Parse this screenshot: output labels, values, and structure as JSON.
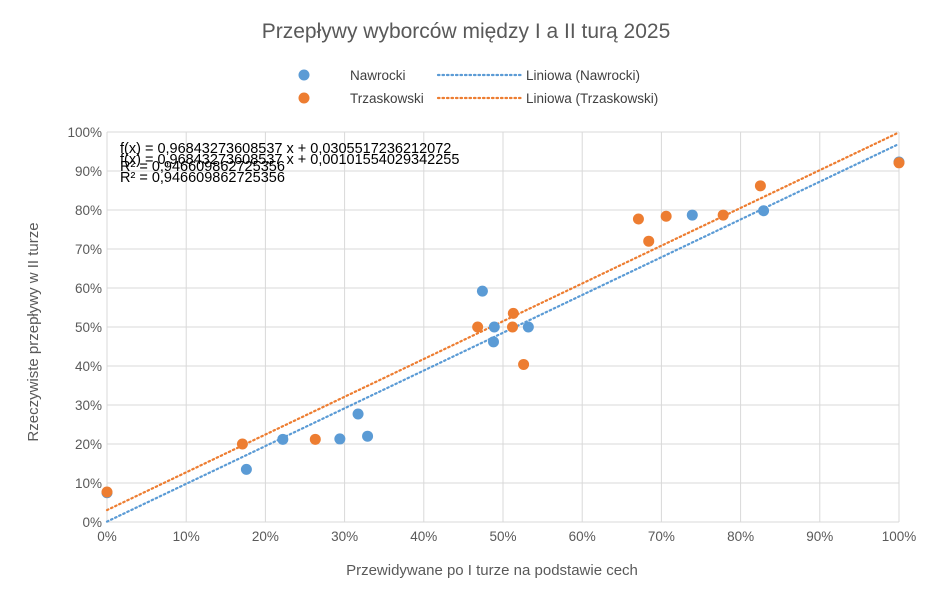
{
  "chart_data": {
    "type": "scatter",
    "title": "Przepływy wyborców między I a II turą 2025",
    "xlabel": "Przewidywane po I turze na podstawie cech",
    "ylabel": "Rzeczywiste przepływy w II turze",
    "xlim": [
      0,
      1
    ],
    "ylim": [
      0,
      1
    ],
    "x_ticks": [
      "0%",
      "10%",
      "20%",
      "30%",
      "40%",
      "50%",
      "60%",
      "70%",
      "80%",
      "90%",
      "100%"
    ],
    "y_ticks": [
      "0%",
      "10%",
      "20%",
      "30%",
      "40%",
      "50%",
      "60%",
      "70%",
      "80%",
      "90%",
      "100%"
    ],
    "grid": true,
    "legend_position": "top",
    "series": [
      {
        "name": "Nawrocki",
        "color": "#5b9bd5",
        "points": [
          {
            "x": 0.0,
            "y": 0.075
          },
          {
            "x": 0.176,
            "y": 0.135
          },
          {
            "x": 0.222,
            "y": 0.212
          },
          {
            "x": 0.294,
            "y": 0.213
          },
          {
            "x": 0.317,
            "y": 0.277
          },
          {
            "x": 0.329,
            "y": 0.22
          },
          {
            "x": 0.474,
            "y": 0.592
          },
          {
            "x": 0.488,
            "y": 0.462
          },
          {
            "x": 0.489,
            "y": 0.5
          },
          {
            "x": 0.532,
            "y": 0.5
          },
          {
            "x": 0.739,
            "y": 0.787
          },
          {
            "x": 0.829,
            "y": 0.798
          },
          {
            "x": 1.0,
            "y": 0.923
          }
        ],
        "trendline": {
          "name": "Liniowa (Nawrocki)",
          "slope": 0.96843273608537,
          "intercept": 0.00101554029342255,
          "equation": "f(x) = 0,96843273608537 x + 0,00101554029342255",
          "r2": "R² = 0,946609862725356"
        }
      },
      {
        "name": "Trzaskowski",
        "color": "#ed7d31",
        "points": [
          {
            "x": 0.0,
            "y": 0.077
          },
          {
            "x": 0.171,
            "y": 0.2
          },
          {
            "x": 0.263,
            "y": 0.212
          },
          {
            "x": 0.468,
            "y": 0.5
          },
          {
            "x": 0.512,
            "y": 0.5
          },
          {
            "x": 0.513,
            "y": 0.535
          },
          {
            "x": 0.526,
            "y": 0.404
          },
          {
            "x": 0.671,
            "y": 0.777
          },
          {
            "x": 0.684,
            "y": 0.72
          },
          {
            "x": 0.706,
            "y": 0.784
          },
          {
            "x": 0.778,
            "y": 0.787
          },
          {
            "x": 0.825,
            "y": 0.862
          },
          {
            "x": 1.0,
            "y": 0.921
          }
        ],
        "trendline": {
          "name": "Liniowa (Trzaskowski)",
          "slope": 0.96843273608537,
          "intercept": 0.0305517236212072,
          "equation": "f(x) = 0,96843273608537 x + 0,0305517236212072",
          "r2": "R² = 0,946609862725356"
        }
      }
    ]
  }
}
